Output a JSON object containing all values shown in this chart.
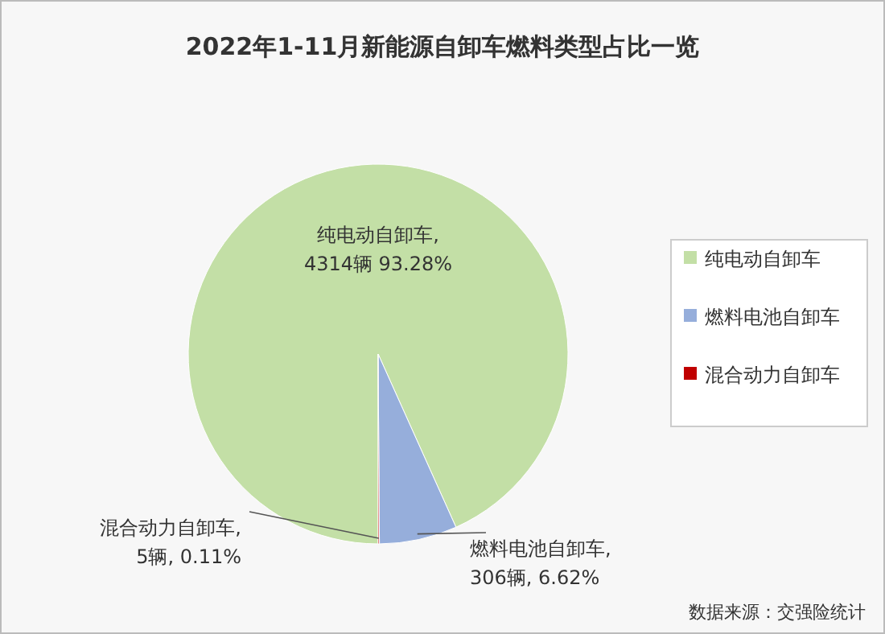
{
  "chart_data": {
    "type": "pie",
    "title": "2022年1-11月新能源自卸车燃料类型占比一览",
    "categories": [
      "纯电动自卸车",
      "燃料电池自卸车",
      "混合动力自卸车"
    ],
    "values": [
      4314,
      306,
      5
    ],
    "value_labels": [
      "纯电动自卸车,\n4314辆 93.28%",
      "燃料电池自卸车,\n306辆, 6.62%",
      "混合动力自卸车,\n5辆, 0.11%"
    ],
    "colors": [
      "#c3dfa6",
      "#96aedb",
      "#c00000"
    ],
    "legend": "right",
    "annotations": [
      "数据来源：交强险统计"
    ]
  }
}
